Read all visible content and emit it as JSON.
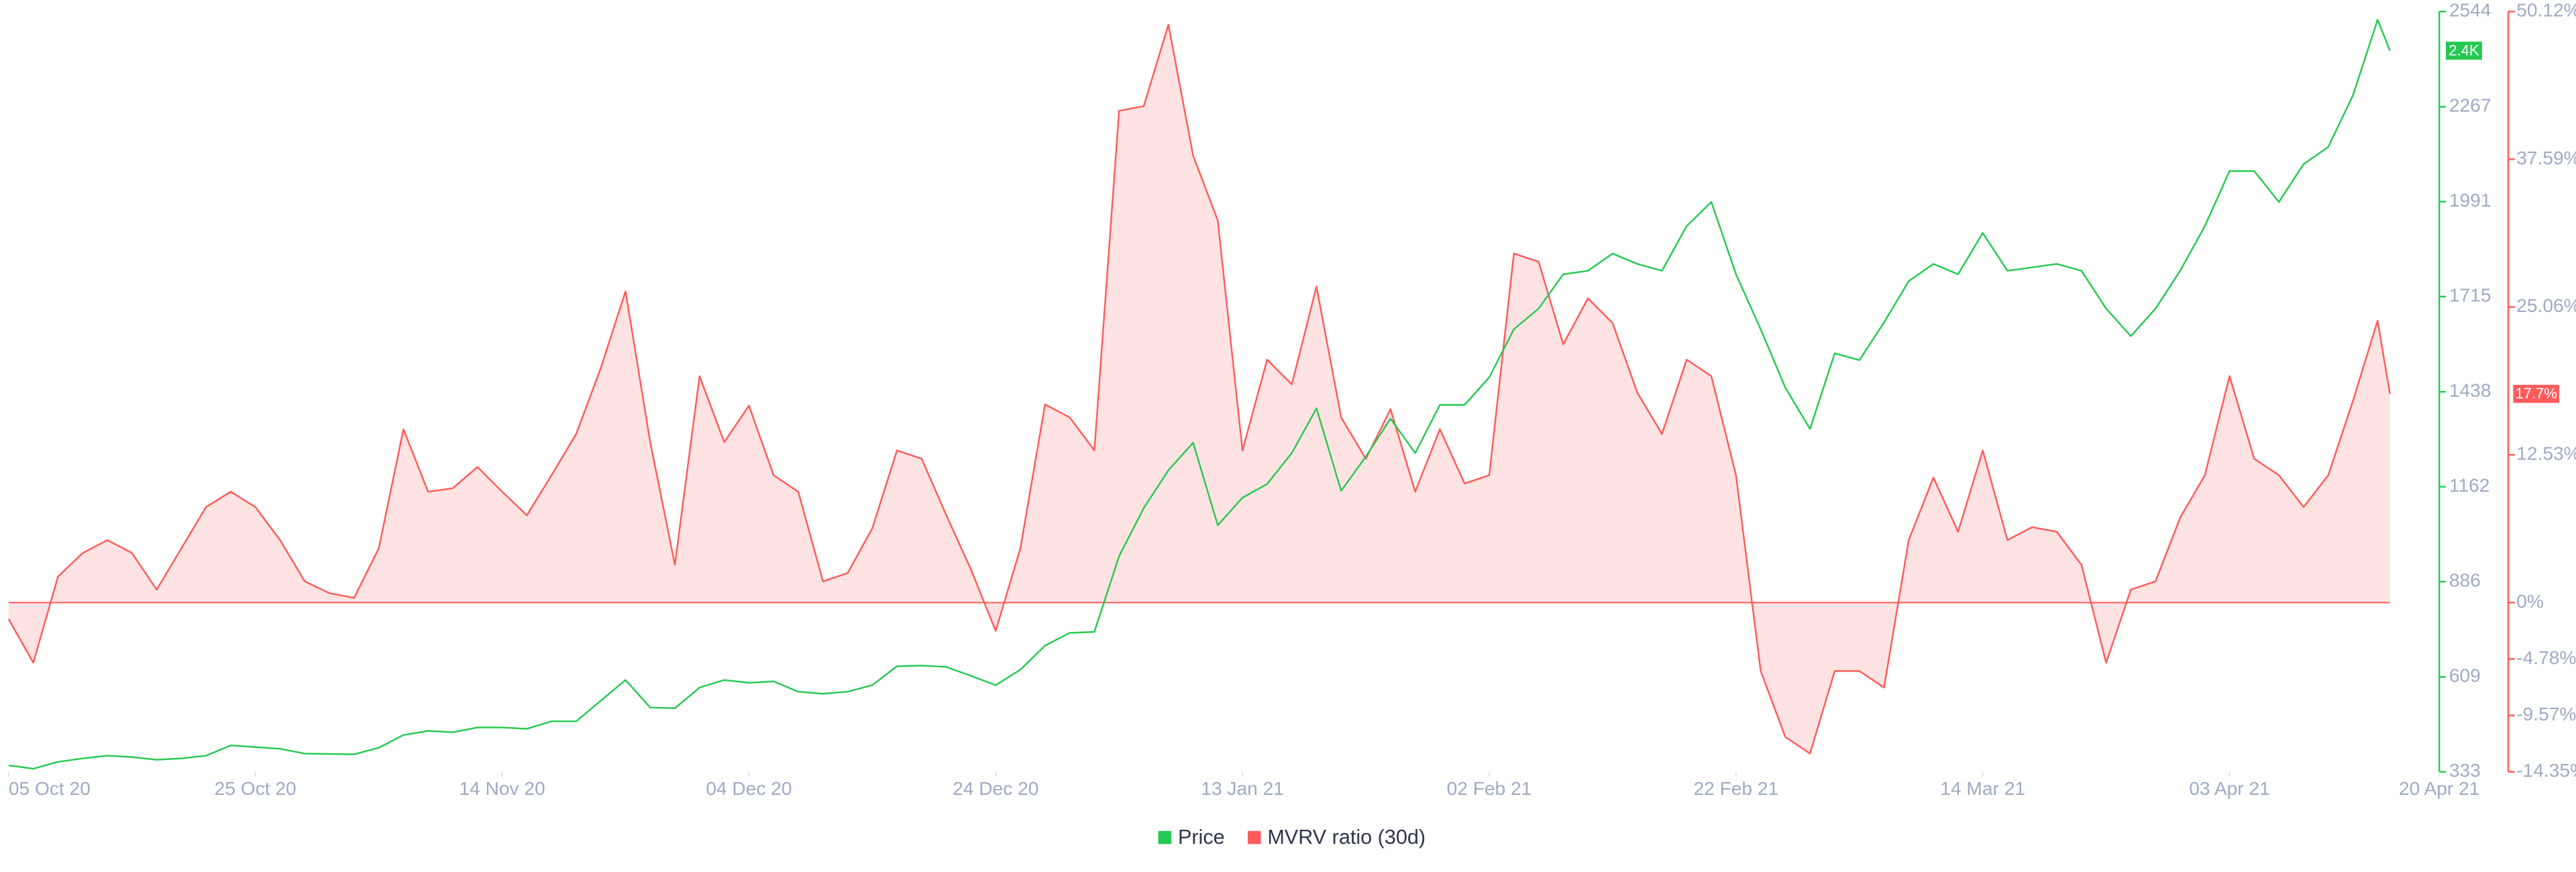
{
  "chart_data": {
    "type": "line",
    "x": [
      "2020-10-05",
      "2020-10-07",
      "2020-10-09",
      "2020-10-11",
      "2020-10-13",
      "2020-10-15",
      "2020-10-17",
      "2020-10-19",
      "2020-10-21",
      "2020-10-23",
      "2020-10-25",
      "2020-10-27",
      "2020-10-29",
      "2020-10-31",
      "2020-11-02",
      "2020-11-04",
      "2020-11-06",
      "2020-11-08",
      "2020-11-10",
      "2020-11-12",
      "2020-11-14",
      "2020-11-16",
      "2020-11-18",
      "2020-11-20",
      "2020-11-22",
      "2020-11-24",
      "2020-11-26",
      "2020-11-28",
      "2020-11-30",
      "2020-12-02",
      "2020-12-04",
      "2020-12-06",
      "2020-12-08",
      "2020-12-10",
      "2020-12-12",
      "2020-12-14",
      "2020-12-16",
      "2020-12-18",
      "2020-12-20",
      "2020-12-22",
      "2020-12-24",
      "2020-12-26",
      "2020-12-28",
      "2020-12-30",
      "2021-01-01",
      "2021-01-03",
      "2021-01-05",
      "2021-01-07",
      "2021-01-09",
      "2021-01-11",
      "2021-01-13",
      "2021-01-15",
      "2021-01-17",
      "2021-01-19",
      "2021-01-21",
      "2021-01-23",
      "2021-01-25",
      "2021-01-27",
      "2021-01-29",
      "2021-01-31",
      "2021-02-02",
      "2021-02-04",
      "2021-02-06",
      "2021-02-08",
      "2021-02-10",
      "2021-02-12",
      "2021-02-14",
      "2021-02-16",
      "2021-02-18",
      "2021-02-20",
      "2021-02-22",
      "2021-02-24",
      "2021-02-26",
      "2021-02-28",
      "2021-03-02",
      "2021-03-04",
      "2021-03-06",
      "2021-03-08",
      "2021-03-10",
      "2021-03-12",
      "2021-03-14",
      "2021-03-16",
      "2021-03-18",
      "2021-03-20",
      "2021-03-22",
      "2021-03-24",
      "2021-03-26",
      "2021-03-28",
      "2021-03-30",
      "2021-04-01",
      "2021-04-03",
      "2021-04-05",
      "2021-04-07",
      "2021-04-09",
      "2021-04-11",
      "2021-04-13",
      "2021-04-15",
      "2021-04-16"
    ],
    "xlim": [
      "2020-10-05",
      "2021-04-20"
    ],
    "xticks": [
      {
        "value": "2020-10-05",
        "label": "05 Oct 20"
      },
      {
        "value": "2020-10-25",
        "label": "25 Oct 20"
      },
      {
        "value": "2020-11-14",
        "label": "14 Nov 20"
      },
      {
        "value": "2020-12-04",
        "label": "04 Dec 20"
      },
      {
        "value": "2020-12-24",
        "label": "24 Dec 20"
      },
      {
        "value": "2021-01-13",
        "label": "13 Jan 21"
      },
      {
        "value": "2021-02-02",
        "label": "02 Feb 21"
      },
      {
        "value": "2021-02-22",
        "label": "22 Feb 21"
      },
      {
        "value": "2021-03-14",
        "label": "14 Mar 21"
      },
      {
        "value": "2021-04-03",
        "label": "03 Apr 21"
      },
      {
        "value": "2021-04-20",
        "label": "20 Apr 21"
      }
    ],
    "ylim": [
      333,
      2544
    ],
    "yticks": [
      333,
      609,
      886,
      1162,
      1438,
      1715,
      1991,
      2267,
      2544
    ],
    "y2lim": [
      -14.35,
      50.12
    ],
    "y2ticks": [
      {
        "value": -14.35,
        "label": "-14.35%"
      },
      {
        "value": -9.57,
        "label": "-9.57%"
      },
      {
        "value": -4.78,
        "label": "-4.78%"
      },
      {
        "value": 0,
        "label": "0%"
      },
      {
        "value": 12.53,
        "label": "12.53%"
      },
      {
        "value": 25.06,
        "label": "25.06%"
      },
      {
        "value": 37.59,
        "label": "37.59%"
      },
      {
        "value": 50.12,
        "label": "50.12%"
      }
    ],
    "legend": "bottom",
    "grid": false,
    "series": [
      {
        "name": "Price",
        "color": "#26c953",
        "axis": "y",
        "badge": {
          "value": 2430,
          "label": "2.4K"
        },
        "values": [
          352,
          342,
          362,
          372,
          380,
          376,
          368,
          372,
          380,
          410,
          405,
          400,
          386,
          385,
          384,
          403,
          440,
          452,
          448,
          462,
          462,
          458,
          480,
          480,
          540,
          600,
          520,
          518,
          578,
          600,
          592,
          596,
          566,
          560,
          566,
          585,
          640,
          642,
          638,
          612,
          585,
          630,
          700,
          737,
          740,
          960,
          1100,
          1210,
          1290,
          1050,
          1130,
          1170,
          1260,
          1390,
          1150,
          1250,
          1360,
          1260,
          1400,
          1400,
          1480,
          1620,
          1680,
          1780,
          1790,
          1840,
          1810,
          1790,
          1920,
          1990,
          1780,
          1620,
          1450,
          1330,
          1550,
          1530,
          1640,
          1760,
          1810,
          1780,
          1900,
          1790,
          1800,
          1810,
          1790,
          1680,
          1600,
          1680,
          1790,
          1920,
          2080,
          2080,
          1990,
          2100,
          2150,
          2300,
          2520,
          2430
        ]
      },
      {
        "name": "MVRV ratio (30d)",
        "color": "#ff5b5b",
        "fill": "#ffe3e3",
        "axis": "y2",
        "badge": {
          "value": 17.7,
          "label": "17.7%"
        },
        "values": [
          -1.4,
          -5.1,
          2.2,
          4.2,
          5.3,
          4.2,
          1.1,
          4.6,
          8.1,
          9.4,
          8.1,
          5.3,
          1.8,
          0.8,
          0.4,
          4.6,
          14.7,
          9.4,
          9.7,
          11.5,
          9.4,
          7.4,
          10.8,
          14.3,
          19.9,
          26.4,
          13.6,
          3.2,
          19.2,
          13.6,
          16.7,
          10.8,
          9.4,
          1.8,
          2.5,
          6.3,
          12.9,
          12.2,
          7.4,
          2.8,
          -2.4,
          4.6,
          16.8,
          15.7,
          12.9,
          41.7,
          42.1,
          49.0,
          37.9,
          32.4,
          12.9,
          20.6,
          18.5,
          26.8,
          15.7,
          12.2,
          16.4,
          9.4,
          14.7,
          10.1,
          10.8,
          29.6,
          28.9,
          21.9,
          25.8,
          23.7,
          17.8,
          14.3,
          20.6,
          19.2,
          10.8,
          -5.8,
          -11.4,
          -12.8,
          -5.8,
          -5.8,
          -7.2,
          5.3,
          10.6,
          6.0,
          12.9,
          5.3,
          6.4,
          6.0,
          3.2,
          -5.1,
          1.1,
          1.8,
          7.2,
          10.8,
          19.2,
          12.2,
          10.8,
          8.1,
          10.8,
          17.1,
          23.9,
          17.7
        ]
      }
    ]
  }
}
